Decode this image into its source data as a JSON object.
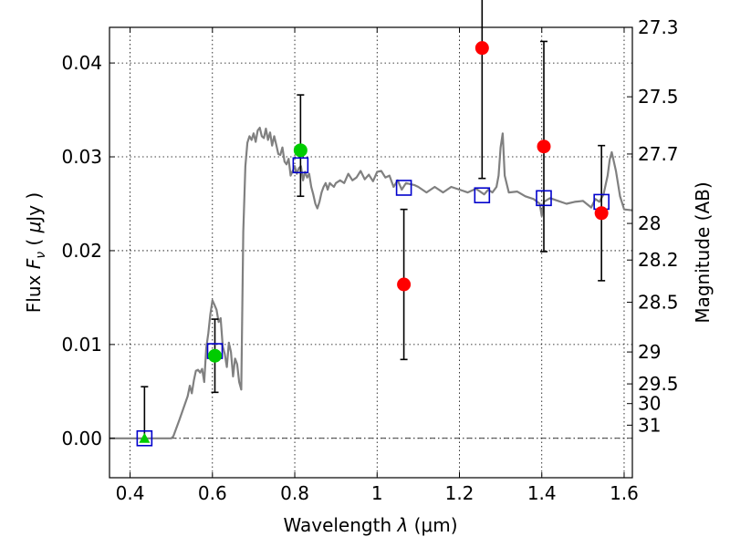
{
  "chart_data": {
    "type": "scatter",
    "xlabel": "Wavelength  λ (μm)",
    "ylabel": "Flux  F_ν  ( μJy )",
    "ylabel_parts": {
      "lead": "Flux  ",
      "symbol": "F",
      "sub": "ν",
      "unit_open": "  ( ",
      "unit_mu": "μ",
      "unit_rest": "Jy )"
    },
    "xlabel_parts": {
      "lead": "Wavelength  ",
      "symbol": "λ",
      "unit": " (μm)"
    },
    "y2label": "Magnitude (AB)",
    "xlim": [
      0.35,
      1.62
    ],
    "ylim": [
      -0.0042,
      0.0438
    ],
    "grid": true,
    "x_ticks": [
      {
        "value": 0.4,
        "label": "0.4"
      },
      {
        "value": 0.6,
        "label": "0.6"
      },
      {
        "value": 0.8,
        "label": "0.8"
      },
      {
        "value": 1.0,
        "label": "1"
      },
      {
        "value": 1.2,
        "label": "1.2"
      },
      {
        "value": 1.4,
        "label": "1.4"
      },
      {
        "value": 1.6,
        "label": "1.6"
      }
    ],
    "y_ticks": [
      {
        "value": 0.0,
        "label": "0.00"
      },
      {
        "value": 0.01,
        "label": "0.01"
      },
      {
        "value": 0.02,
        "label": "0.02"
      },
      {
        "value": 0.03,
        "label": "0.03"
      },
      {
        "value": 0.04,
        "label": "0.04"
      }
    ],
    "magnitude_ticks": [
      {
        "value": 0.0438,
        "label": "27.3"
      },
      {
        "value": 0.0364,
        "label": "27.5"
      },
      {
        "value": 0.0303,
        "label": "27.7"
      },
      {
        "value": 0.0229,
        "label": "28"
      },
      {
        "value": 0.019,
        "label": "28.2"
      },
      {
        "value": 0.0145,
        "label": "28.5"
      },
      {
        "value": 0.0092,
        "label": "29"
      },
      {
        "value": 0.0058,
        "label": "29.5"
      },
      {
        "value": 0.0037,
        "label": "30"
      },
      {
        "value": 0.0014,
        "label": "31"
      }
    ],
    "model_spectrum": {
      "color": "#808080",
      "x": [
        0.35,
        0.5,
        0.505,
        0.52,
        0.54,
        0.545,
        0.55,
        0.555,
        0.56,
        0.565,
        0.57,
        0.575,
        0.58,
        0.585,
        0.59,
        0.595,
        0.6,
        0.605,
        0.61,
        0.615,
        0.62,
        0.625,
        0.63,
        0.635,
        0.64,
        0.645,
        0.65,
        0.655,
        0.66,
        0.665,
        0.67,
        0.675,
        0.68,
        0.685,
        0.69,
        0.695,
        0.7,
        0.705,
        0.71,
        0.715,
        0.72,
        0.725,
        0.73,
        0.735,
        0.74,
        0.745,
        0.75,
        0.755,
        0.76,
        0.765,
        0.77,
        0.775,
        0.78,
        0.785,
        0.79,
        0.795,
        0.8,
        0.805,
        0.81,
        0.815,
        0.82,
        0.825,
        0.83,
        0.835,
        0.84,
        0.845,
        0.85,
        0.855,
        0.86,
        0.865,
        0.87,
        0.875,
        0.88,
        0.885,
        0.89,
        0.895,
        0.9,
        0.91,
        0.92,
        0.93,
        0.94,
        0.95,
        0.96,
        0.97,
        0.98,
        0.99,
        1.0,
        1.01,
        1.02,
        1.03,
        1.04,
        1.05,
        1.06,
        1.07,
        1.08,
        1.09,
        1.1,
        1.12,
        1.14,
        1.16,
        1.18,
        1.2,
        1.22,
        1.24,
        1.26,
        1.27,
        1.28,
        1.29,
        1.295,
        1.3,
        1.305,
        1.31,
        1.32,
        1.34,
        1.36,
        1.38,
        1.395,
        1.4,
        1.405,
        1.42,
        1.44,
        1.46,
        1.48,
        1.5,
        1.52,
        1.53,
        1.54,
        1.55,
        1.56,
        1.565,
        1.57,
        1.58,
        1.59,
        1.6,
        1.62
      ],
      "y": [
        0.0,
        0.0,
        0.0002,
        0.002,
        0.0045,
        0.0056,
        0.0048,
        0.0062,
        0.0072,
        0.0073,
        0.007,
        0.0074,
        0.006,
        0.0096,
        0.0112,
        0.0132,
        0.0147,
        0.0142,
        0.0137,
        0.0124,
        0.0128,
        0.0098,
        0.009,
        0.0076,
        0.0102,
        0.0092,
        0.0066,
        0.0085,
        0.0079,
        0.006,
        0.0052,
        0.022,
        0.029,
        0.0315,
        0.0322,
        0.0318,
        0.0325,
        0.0316,
        0.0328,
        0.0331,
        0.0322,
        0.032,
        0.033,
        0.0318,
        0.0326,
        0.0312,
        0.0322,
        0.0313,
        0.0303,
        0.0302,
        0.031,
        0.0295,
        0.0292,
        0.0298,
        0.028,
        0.0285,
        0.029,
        0.0282,
        0.0288,
        0.029,
        0.0275,
        0.0284,
        0.0278,
        0.0282,
        0.0268,
        0.026,
        0.025,
        0.0245,
        0.0252,
        0.0262,
        0.0268,
        0.0272,
        0.0265,
        0.0272,
        0.027,
        0.0268,
        0.0272,
        0.0275,
        0.0272,
        0.0282,
        0.0275,
        0.0278,
        0.0285,
        0.0276,
        0.0281,
        0.0274,
        0.0284,
        0.0285,
        0.0278,
        0.028,
        0.0268,
        0.0275,
        0.0265,
        0.0272,
        0.0271,
        0.027,
        0.0268,
        0.0262,
        0.0268,
        0.0262,
        0.0268,
        0.0265,
        0.0262,
        0.0266,
        0.026,
        0.0265,
        0.0262,
        0.0268,
        0.028,
        0.031,
        0.0325,
        0.028,
        0.0262,
        0.0263,
        0.0258,
        0.0255,
        0.025,
        0.0237,
        0.0252,
        0.0256,
        0.0253,
        0.025,
        0.0252,
        0.0253,
        0.0246,
        0.0255,
        0.0252,
        0.026,
        0.028,
        0.0297,
        0.0305,
        0.0285,
        0.0258,
        0.0244,
        0.0243
      ]
    },
    "model_photometry": {
      "marker": "open-square",
      "color": "#0000cc",
      "x": [
        0.435,
        0.606,
        0.814,
        1.065,
        1.255,
        1.405,
        1.545
      ],
      "y": [
        0.0,
        0.0093,
        0.0291,
        0.0267,
        0.0259,
        0.0256,
        0.0252
      ]
    },
    "measurements": [
      {
        "marker": "triangle",
        "color": "#00cc00",
        "x": 0.435,
        "y": 0.0,
        "err_low": 0.0,
        "err_high": 0.0055
      },
      {
        "marker": "circle",
        "color": "#00cc00",
        "x": 0.606,
        "y": 0.0088,
        "err_low": 0.0039,
        "err_high": 0.0039
      },
      {
        "marker": "circle",
        "color": "#00cc00",
        "x": 0.814,
        "y": 0.0307,
        "err_low": 0.0049,
        "err_high": 0.0059
      },
      {
        "marker": "circle",
        "color": "#ff0000",
        "x": 1.065,
        "y": 0.0164,
        "err_low": 0.008,
        "err_high": 0.008
      },
      {
        "marker": "circle",
        "color": "#ff0000",
        "x": 1.255,
        "y": 0.0416,
        "err_low": 0.0139,
        "err_high": 0.0139
      },
      {
        "marker": "circle",
        "color": "#ff0000",
        "x": 1.405,
        "y": 0.0311,
        "err_low": 0.0112,
        "err_high": 0.0112
      },
      {
        "marker": "circle",
        "color": "#ff0000",
        "x": 1.545,
        "y": 0.024,
        "err_low": 0.0072,
        "err_high": 0.0072
      }
    ],
    "zero_line": {
      "y": 0.0,
      "style": "dash-dot",
      "color": "#000000"
    }
  }
}
